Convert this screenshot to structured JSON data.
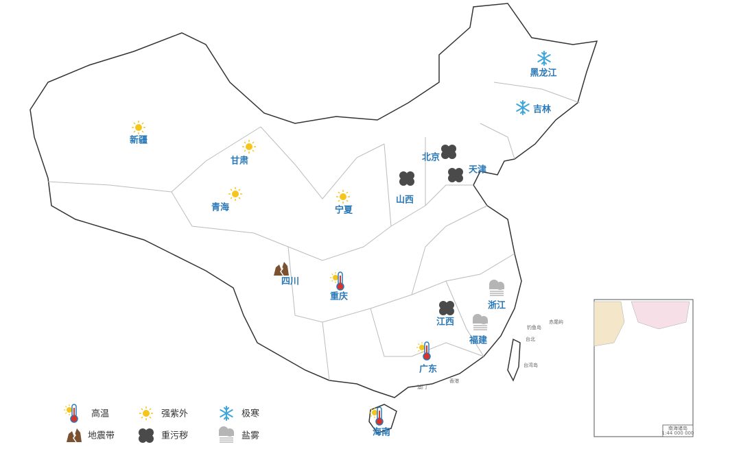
{
  "provinces": [
    "黑龙江",
    "吉林",
    "新疆",
    "甘肃",
    "青海",
    "宁夏",
    "北京",
    "天津",
    "山西",
    "四川",
    "重庆",
    "江西",
    "浙江",
    "福建",
    "广东",
    "海南"
  ],
  "legend": [
    "高温",
    "强紫外",
    "极寒",
    "地震带",
    "重污秽",
    "盐雾"
  ],
  "places": [
    "台北",
    "台湾岛",
    "钓鱼岛",
    "赤尾屿",
    "香港",
    "澳门"
  ],
  "inset": {
    "title": "南海诸岛",
    "scale": "1:44 000 000"
  }
}
